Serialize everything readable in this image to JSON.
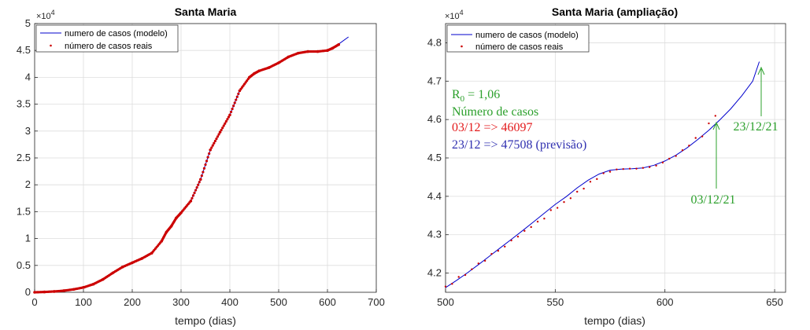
{
  "chart_data": [
    {
      "type": "line",
      "title": "Santa Maria",
      "xlabel": "tempo (dias)",
      "ylabel": "",
      "xlim": [
        0,
        700
      ],
      "ylim": [
        0,
        50000
      ],
      "xticks": [
        0,
        100,
        200,
        300,
        400,
        500,
        600,
        700
      ],
      "yticks": [
        0,
        0.5,
        1,
        1.5,
        2,
        2.5,
        3,
        3.5,
        4,
        4.5,
        5
      ],
      "ytick_labels": [
        "0",
        "0.5",
        "1",
        "1.5",
        "2",
        "2.5",
        "3",
        "3.5",
        "4",
        "4.5",
        "5"
      ],
      "y_exponent": "×10",
      "y_exponent_power": "4",
      "grid": true,
      "legend_position": "top-left",
      "series": [
        {
          "name": "numero de casos (modelo)",
          "style": "line",
          "color": "#0000cc",
          "x": [
            0,
            20,
            40,
            60,
            80,
            100,
            120,
            140,
            160,
            180,
            200,
            220,
            240,
            260,
            270,
            280,
            290,
            300,
            320,
            340,
            360,
            380,
            400,
            420,
            440,
            450,
            460,
            480,
            500,
            520,
            540,
            560,
            580,
            600,
            620,
            643
          ],
          "y": [
            0,
            60,
            150,
            300,
            550,
            900,
            1500,
            2400,
            3600,
            4700,
            5500,
            6300,
            7300,
            9500,
            11200,
            12300,
            13800,
            14800,
            17000,
            21000,
            26500,
            29800,
            33000,
            37500,
            40000,
            40700,
            41200,
            41800,
            42700,
            43800,
            44500,
            44800,
            44800,
            45000,
            46000,
            47508
          ]
        },
        {
          "name": "número de casos reais",
          "style": "markers",
          "color": "#cc0000",
          "x": [
            0,
            20,
            40,
            60,
            80,
            100,
            120,
            140,
            160,
            180,
            200,
            220,
            240,
            260,
            270,
            280,
            290,
            300,
            320,
            340,
            360,
            380,
            400,
            420,
            440,
            450,
            460,
            480,
            500,
            520,
            540,
            560,
            580,
            600,
            610,
            623
          ],
          "y": [
            0,
            60,
            150,
            300,
            550,
            900,
            1500,
            2400,
            3600,
            4700,
            5500,
            6300,
            7300,
            9500,
            11200,
            12300,
            13800,
            14800,
            17000,
            21000,
            26500,
            29800,
            33000,
            37500,
            40000,
            40700,
            41200,
            41800,
            42700,
            43800,
            44500,
            44800,
            44800,
            45000,
            45400,
            46097
          ]
        }
      ]
    },
    {
      "type": "line",
      "title": "Santa Maria (ampliação)",
      "xlabel": "tempo (dias)",
      "ylabel": "",
      "xlim": [
        500,
        655
      ],
      "ylim": [
        41500,
        48500
      ],
      "xticks": [
        500,
        550,
        600,
        650
      ],
      "yticks": [
        4.2,
        4.3,
        4.4,
        4.5,
        4.6,
        4.7,
        4.8
      ],
      "ytick_labels": [
        "4.2",
        "4.3",
        "4.4",
        "4.5",
        "4.6",
        "4.7",
        "4.8"
      ],
      "y_exponent": "×10",
      "y_exponent_power": "4",
      "grid": true,
      "legend_position": "top-left",
      "series": [
        {
          "name": "numero de casos (modelo)",
          "style": "line",
          "color": "#0000cc",
          "x": [
            500,
            505,
            510,
            515,
            520,
            525,
            530,
            535,
            540,
            545,
            550,
            555,
            560,
            565,
            570,
            575,
            580,
            585,
            590,
            595,
            600,
            605,
            610,
            615,
            620,
            625,
            630,
            635,
            640,
            643
          ],
          "y": [
            41620,
            41810,
            42010,
            42220,
            42440,
            42660,
            42880,
            43100,
            43330,
            43560,
            43790,
            43990,
            44220,
            44420,
            44580,
            44680,
            44710,
            44720,
            44740,
            44810,
            44920,
            45070,
            45260,
            45480,
            45720,
            45990,
            46280,
            46620,
            47000,
            47508
          ]
        },
        {
          "name": "número de casos reais",
          "style": "markers",
          "color": "#cc0000",
          "x": [
            500,
            503,
            506,
            509,
            512,
            515,
            518,
            521,
            524,
            527,
            530,
            533,
            536,
            539,
            542,
            545,
            548,
            551,
            554,
            557,
            560,
            563,
            566,
            569,
            572,
            575,
            578,
            581,
            584,
            587,
            590,
            593,
            596,
            599,
            602,
            605,
            608,
            611,
            614,
            617,
            620,
            623
          ],
          "y": [
            41650,
            41720,
            41900,
            41950,
            42100,
            42250,
            42320,
            42500,
            42580,
            42690,
            42850,
            42950,
            43100,
            43200,
            43340,
            43420,
            43640,
            43700,
            43850,
            43950,
            44120,
            44200,
            44380,
            44450,
            44600,
            44640,
            44700,
            44710,
            44720,
            44720,
            44740,
            44760,
            44800,
            44880,
            44980,
            45050,
            45200,
            45320,
            45520,
            45560,
            45900,
            46097
          ]
        }
      ]
    }
  ],
  "annotations": {
    "r0_prefix": "R",
    "r0_sub": "0",
    "r0_rest": " = 1,06",
    "cases_title": "Número de casos",
    "line_real": "03/12 => 46097",
    "line_forecast": "23/12 => 47508 (previsão)",
    "arrow_real_label": "03/12/21",
    "arrow_forecast_label": "23/12/21",
    "color_green": "#2ca02c",
    "color_red": "#e31a1c",
    "color_blue": "#3030b0"
  }
}
